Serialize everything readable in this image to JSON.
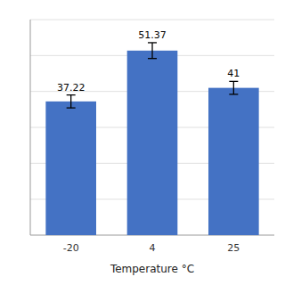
{
  "chart_data": {
    "type": "bar",
    "categories": [
      "-20",
      "4",
      "25"
    ],
    "values": [
      37.22,
      51.37,
      41.0
    ],
    "errors": [
      1.8,
      2.2,
      1.8
    ],
    "color": "#4472C4",
    "xlabel": "Temperature °C",
    "ylim": [
      0,
      60
    ],
    "yticks": [
      10,
      20,
      30,
      40,
      50,
      60
    ],
    "grid": true,
    "tick_labels": "x",
    "data_labels": true
  }
}
